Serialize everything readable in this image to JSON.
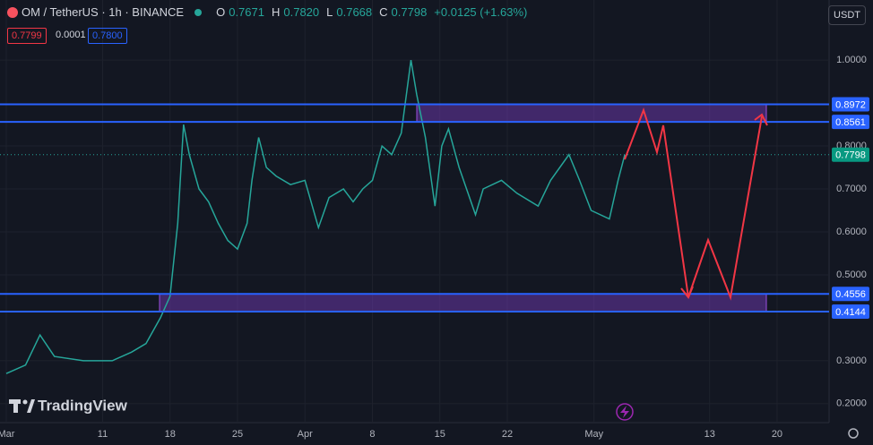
{
  "chart_data": {
    "type": "line",
    "header": {
      "symbol": "OM / TetherUS · 1h · BINANCE",
      "ohlc": [
        {
          "key": "O",
          "value": "0.7671"
        },
        {
          "key": "H",
          "value": "0.7820"
        },
        {
          "key": "L",
          "value": "0.7668"
        },
        {
          "key": "C",
          "value": "0.7798"
        }
      ],
      "change": "+0.0125 (+1.63%)",
      "bid": "0.7799",
      "spread": "0.0001",
      "ask": "0.7800",
      "currency": "USDT"
    },
    "watermark": "TradingView",
    "series": [
      {
        "color": "#26a69a",
        "x": [
          0,
          2,
          3.5,
          5,
          8,
          11,
          13,
          14.5,
          16,
          17,
          17.8,
          18.4,
          19,
          20,
          21,
          22,
          23,
          24,
          25,
          25.5,
          26.2,
          27,
          28,
          29.5,
          31,
          32.4,
          33.5,
          35,
          36,
          37,
          38,
          39,
          40,
          41,
          42,
          42.6,
          43.5,
          44.5,
          45.2,
          45.9,
          47,
          48.7,
          49.5,
          51.4,
          53,
          55.2,
          56.5,
          58.4,
          59.5,
          60.7,
          62.6,
          63.5,
          64.2
        ],
        "values": [
          0.27,
          0.29,
          0.36,
          0.31,
          0.3,
          0.3,
          0.32,
          0.34,
          0.4,
          0.45,
          0.62,
          0.85,
          0.78,
          0.7,
          0.67,
          0.62,
          0.58,
          0.56,
          0.62,
          0.72,
          0.82,
          0.75,
          0.73,
          0.71,
          0.72,
          0.61,
          0.68,
          0.7,
          0.67,
          0.7,
          0.72,
          0.8,
          0.78,
          0.83,
          1.0,
          0.92,
          0.82,
          0.66,
          0.8,
          0.84,
          0.75,
          0.64,
          0.7,
          0.72,
          0.69,
          0.66,
          0.72,
          0.78,
          0.72,
          0.65,
          0.63,
          0.72,
          0.78
        ]
      }
    ],
    "last_price": 0.7798,
    "levels": [
      0.8972,
      0.8561,
      0.4556,
      0.4144
    ],
    "level_color": "#2962ff",
    "zone_color": "#7b3fc4",
    "xlim": [
      -0.65,
      85.4
    ],
    "ylim": [
      0.16,
      1.14
    ],
    "xticks": [
      {
        "value": 0,
        "label": "Mar"
      },
      {
        "value": 10,
        "label": "11"
      },
      {
        "value": 17,
        "label": "18"
      },
      {
        "value": 24,
        "label": "25"
      },
      {
        "value": 31,
        "label": "Apr"
      },
      {
        "value": 38,
        "label": "8"
      },
      {
        "value": 45,
        "label": "15"
      },
      {
        "value": 52,
        "label": "22"
      },
      {
        "value": 61,
        "label": "May"
      },
      {
        "value": 73,
        "label": "13"
      },
      {
        "value": 80,
        "label": "20"
      }
    ],
    "yticks": [
      {
        "value": 0.2,
        "label": "0.2000"
      },
      {
        "value": 0.3,
        "label": "0.3000"
      },
      {
        "value": 0.5,
        "label": "0.5000"
      },
      {
        "value": 0.6,
        "label": "0.6000"
      },
      {
        "value": 0.7,
        "label": "0.7000"
      },
      {
        "value": 0.8,
        "label": "0.8000"
      },
      {
        "value": 1.0,
        "label": "1.0000"
      }
    ],
    "grid": true
  }
}
